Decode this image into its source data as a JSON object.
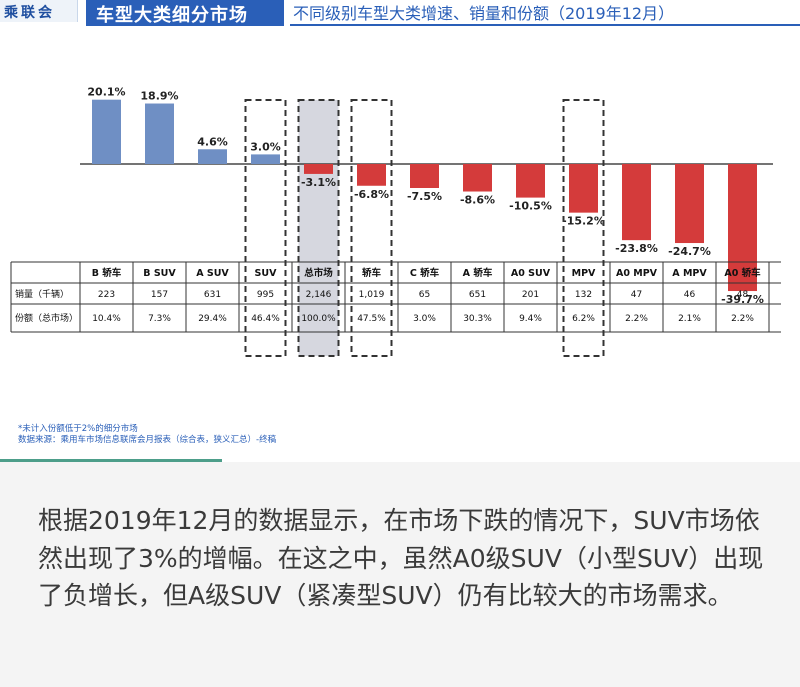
{
  "header": {
    "logo": "乘联会",
    "title": "车型大类细分市场",
    "subtitle": "不同级别车型大类增速、销量和份额（2019年12月）"
  },
  "colors": {
    "positive": "#6f8fc4",
    "negative": "#d43b3b",
    "total_highlight": "#d6d7df",
    "brand": "#2a5fb8"
  },
  "chart_data": {
    "type": "bar",
    "categories": [
      "B 轿车",
      "B SUV",
      "A SUV",
      "SUV",
      "总市场",
      "轿车",
      "C 轿车",
      "A 轿车",
      "A0 SUV",
      "MPV",
      "A0 MPV",
      "A MPV",
      "A0 轿车"
    ],
    "values": [
      20.1,
      18.9,
      4.6,
      3.0,
      -3.1,
      -6.8,
      -7.5,
      -8.6,
      -10.5,
      -15.2,
      -23.8,
      -24.7,
      -39.7
    ],
    "data_labels": [
      "20.1%",
      "18.9%",
      "4.6%",
      "3.0%",
      "-3.1%",
      "-6.8%",
      "-7.5%",
      "-8.6%",
      "-10.5%",
      "-15.2%",
      "-23.8%",
      "-24.7%",
      "-39.7%"
    ],
    "highlighted": [
      "SUV",
      "总市场",
      "轿车",
      "MPV"
    ],
    "shaded": [
      "总市场"
    ],
    "table": {
      "rows": [
        {
          "label": "销量（千辆）",
          "values": [
            "223",
            "157",
            "631",
            "995",
            "2,146",
            "1,019",
            "65",
            "651",
            "201",
            "132",
            "47",
            "46",
            "48"
          ]
        },
        {
          "label": "份额（总市场）",
          "values": [
            "10.4%",
            "7.3%",
            "29.4%",
            "46.4%",
            "100.0%",
            "47.5%",
            "3.0%",
            "30.3%",
            "9.4%",
            "6.2%",
            "2.2%",
            "2.1%",
            "2.2%"
          ]
        }
      ]
    }
  },
  "notes": [
    "*未计入份额低于2%的细分市场",
    "数据来源：乘用车市场信息联席会月报表（综合表，狭义汇总）-终稿"
  ],
  "body_text": "根据2019年12月的数据显示，在市场下跌的情况下，SUV市场依然出现了3%的增幅。在这之中，虽然A0级SUV（小型SUV）出现了负增长，但A级SUV（紧凑型SUV）仍有比较大的市场需求。"
}
